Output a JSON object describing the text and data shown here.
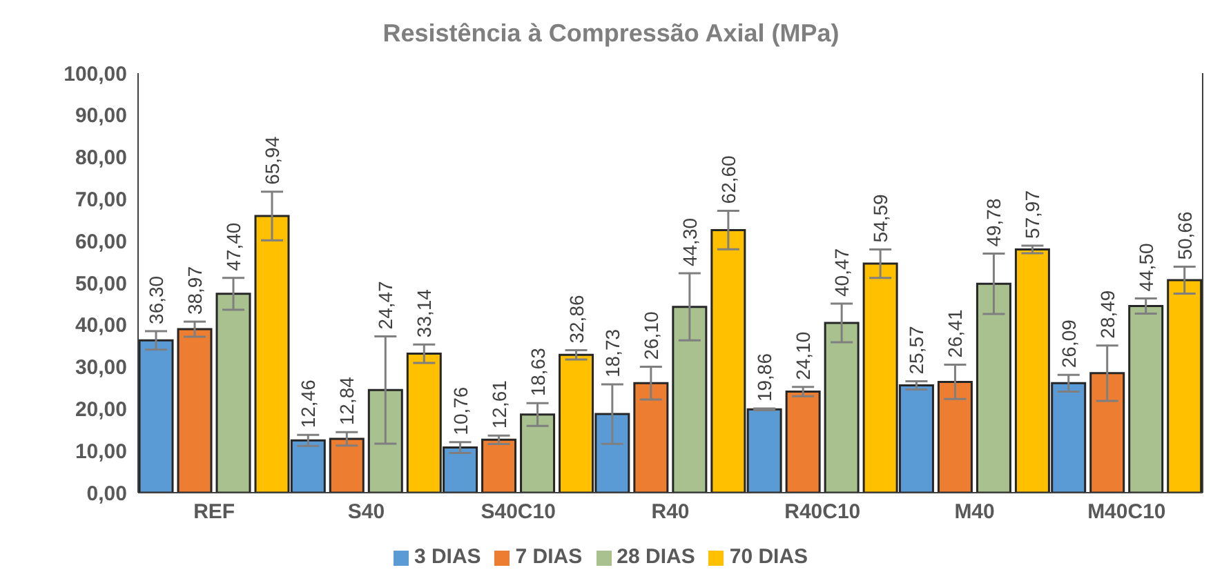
{
  "chart_data": {
    "type": "bar",
    "title": "Resistência à Compressão Axial (MPa)",
    "categories": [
      "REF",
      "S40",
      "S40C10",
      "R40",
      "R40C10",
      "M40",
      "M40C10"
    ],
    "series": [
      {
        "name": "3 DIAS",
        "color": "#5b9bd5",
        "values": [
          36.3,
          12.46,
          10.76,
          18.73,
          19.86,
          25.57,
          26.09
        ],
        "errors": [
          2.2,
          1.3,
          1.3,
          7.1,
          0.2,
          1.0,
          2.0
        ],
        "value_labels": [
          "36,30",
          "12,46",
          "10,76",
          "18,73",
          "19,86",
          "25,57",
          "26,09"
        ]
      },
      {
        "name": "7 DIAS",
        "color": "#ed7d31",
        "values": [
          38.97,
          12.84,
          12.61,
          26.1,
          24.1,
          26.41,
          28.49
        ],
        "errors": [
          1.8,
          1.6,
          1.0,
          3.9,
          1.1,
          4.1,
          6.6
        ],
        "value_labels": [
          "38,97",
          "12,84",
          "12,61",
          "26,10",
          "24,10",
          "26,41",
          "28,49"
        ]
      },
      {
        "name": "28 DIAS",
        "color": "#a9c08f",
        "values": [
          47.4,
          24.47,
          18.63,
          44.3,
          40.47,
          49.78,
          44.5
        ],
        "errors": [
          3.8,
          12.8,
          2.7,
          8.0,
          4.6,
          7.2,
          1.8
        ],
        "value_labels": [
          "47,40",
          "24,47",
          "18,63",
          "44,30",
          "40,47",
          "49,78",
          "44,50"
        ]
      },
      {
        "name": "70 DIAS",
        "color": "#ffc000",
        "values": [
          65.94,
          33.14,
          32.86,
          62.6,
          54.59,
          57.97,
          50.66
        ],
        "errors": [
          5.8,
          2.2,
          1.1,
          4.6,
          3.4,
          0.9,
          3.2
        ],
        "value_labels": [
          "65,94",
          "33,14",
          "32,86",
          "62,60",
          "54,59",
          "57,97",
          "50,66"
        ]
      }
    ],
    "ylim": [
      0,
      100
    ],
    "yticks": [
      {
        "value": 0,
        "label": "0,00"
      },
      {
        "value": 10,
        "label": "10,00"
      },
      {
        "value": 20,
        "label": "20,00"
      },
      {
        "value": 30,
        "label": "30,00"
      },
      {
        "value": 40,
        "label": "40,00"
      },
      {
        "value": 50,
        "label": "50,00"
      },
      {
        "value": 60,
        "label": "60,00"
      },
      {
        "value": 70,
        "label": "70,00"
      },
      {
        "value": 80,
        "label": "80,00"
      },
      {
        "value": 90,
        "label": "90,00"
      },
      {
        "value": 100,
        "label": "100,00"
      }
    ],
    "grid": false,
    "legend": "bottom"
  }
}
